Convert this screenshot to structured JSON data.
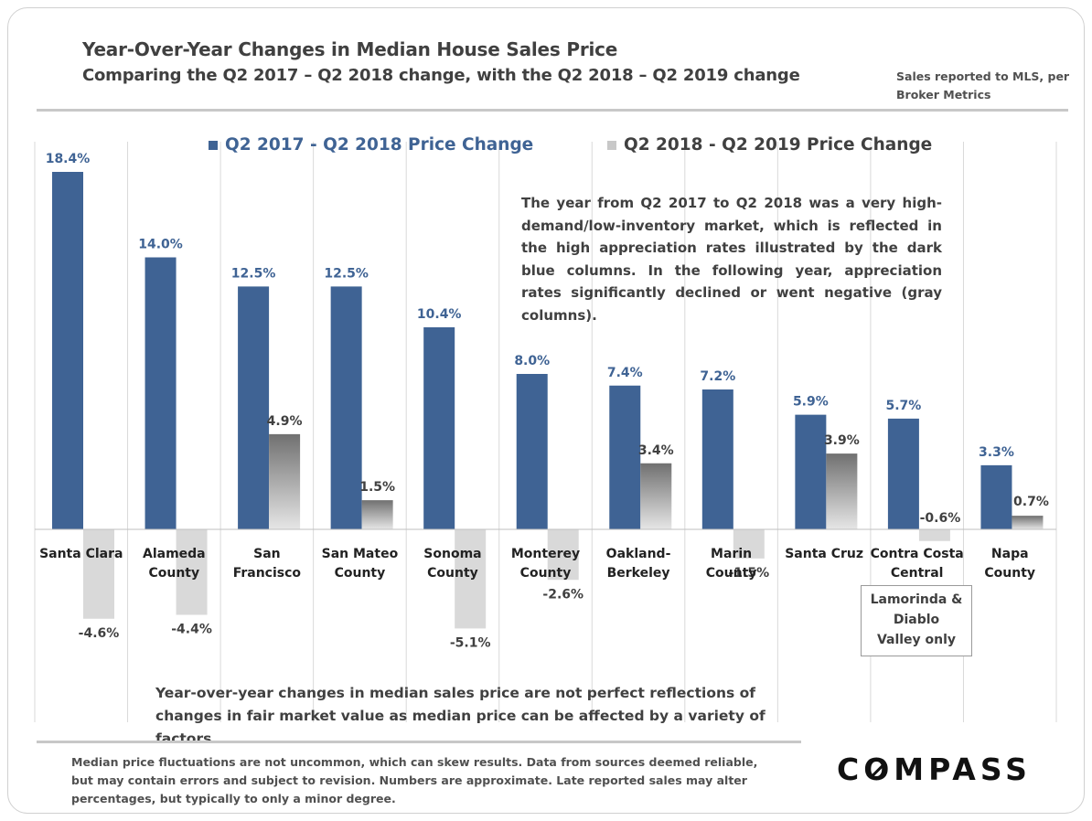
{
  "title": "Year-Over-Year Changes in Median House Sales Price",
  "subtitle": "Comparing the Q2 2017 – Q2 2018 change, with the Q2 2018 – Q2 2019 change",
  "source_note": "Sales reported to MLS, per Broker Metrics",
  "callout": "The year from Q2 2017 to Q2 2018 was a very high-demand/low-inventory market, which is reflected in the high appreciation rates illustrated by the dark blue columns. In the following year, appreciation rates significantly declined or went negative (gray columns).",
  "footnote": "Year-over-year changes in median sales price are not perfect reflections of changes in fair market value as median price can be affected by a variety of factors.",
  "disclaimer": "Median price fluctuations are not uncommon, which can skew results. Data from sources deemed reliable, but may contain errors and subject to revision. Numbers are approximate. Late reported sales may alter percentages, but typically to only a minor degree.",
  "logo_text": "COMPASS",
  "box_note": [
    "Lamorinda &",
    "Diablo",
    "Valley only"
  ],
  "colors": {
    "series1": "#3f6394",
    "series2_top": "#707070",
    "series2_bottom": "#e6e6e6",
    "series2_negative": "#d9d9d9"
  },
  "chart_data": {
    "type": "bar",
    "categories": [
      [
        "Santa Clara"
      ],
      [
        "Alameda",
        "County"
      ],
      [
        "San",
        "Francisco"
      ],
      [
        "San Mateo",
        "County"
      ],
      [
        "Sonoma",
        "County"
      ],
      [
        "Monterey",
        "County"
      ],
      [
        "Oakland-",
        "Berkeley"
      ],
      [
        "Marin",
        "County"
      ],
      [
        "Santa Cruz"
      ],
      [
        "Contra Costa",
        "Central"
      ],
      [
        "Napa",
        "County"
      ]
    ],
    "series": [
      {
        "name": "Q2 2017 - Q2 2018 Price Change",
        "values": [
          18.4,
          14.0,
          12.5,
          12.5,
          10.4,
          8.0,
          7.4,
          7.2,
          5.9,
          5.7,
          3.3
        ]
      },
      {
        "name": "Q2 2018 - Q2 2019 Price Change",
        "values": [
          -4.6,
          -4.4,
          4.9,
          1.5,
          -5.1,
          -2.6,
          3.4,
          -1.5,
          3.9,
          -0.6,
          0.7
        ]
      }
    ],
    "value_suffix": "%",
    "legend_position": "top",
    "gridlines": "vertical category separators"
  }
}
